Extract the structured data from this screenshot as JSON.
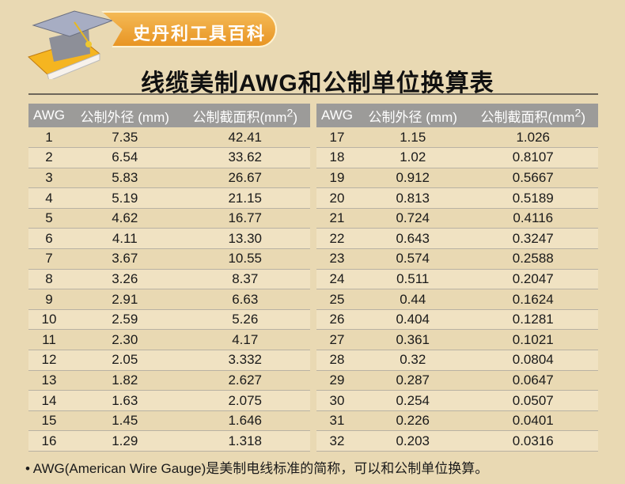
{
  "brand": {
    "name": "史丹利工具百科",
    "logo_icon": "graduation-cap-on-book-icon"
  },
  "title": "线缆美制AWG和公制单位换算表",
  "headers": {
    "awg": "AWG",
    "diameter": "公制外径 (mm)",
    "area": "公制截面积(mm",
    "sup": "2",
    ")": ")"
  },
  "left_rows": [
    [
      "1",
      "7.35",
      "42.41"
    ],
    [
      "2",
      "6.54",
      "33.62"
    ],
    [
      "3",
      "5.83",
      "26.67"
    ],
    [
      "4",
      "5.19",
      "21.15"
    ],
    [
      "5",
      "4.62",
      "16.77"
    ],
    [
      "6",
      "4.11",
      "13.30"
    ],
    [
      "7",
      "3.67",
      "10.55"
    ],
    [
      "8",
      "3.26",
      "8.37"
    ],
    [
      "9",
      "2.91",
      "6.63"
    ],
    [
      "10",
      "2.59",
      "5.26"
    ],
    [
      "11",
      "2.30",
      "4.17"
    ],
    [
      "12",
      "2.05",
      "3.332"
    ],
    [
      "13",
      "1.82",
      "2.627"
    ],
    [
      "14",
      "1.63",
      "2.075"
    ],
    [
      "15",
      "1.45",
      "1.646"
    ],
    [
      "16",
      "1.29",
      "1.318"
    ]
  ],
  "right_rows": [
    [
      "17",
      "1.15",
      "1.026"
    ],
    [
      "18",
      "1.02",
      "0.8107"
    ],
    [
      "19",
      "0.912",
      "0.5667"
    ],
    [
      "20",
      "0.813",
      "0.5189"
    ],
    [
      "21",
      "0.724",
      "0.4116"
    ],
    [
      "22",
      "0.643",
      "0.3247"
    ],
    [
      "23",
      "0.574",
      "0.2588"
    ],
    [
      "24",
      "0.511",
      "0.2047"
    ],
    [
      "25",
      "0.44",
      "0.1624"
    ],
    [
      "26",
      "0.404",
      "0.1281"
    ],
    [
      "27",
      "0.361",
      "0.1021"
    ],
    [
      "28",
      "0.32",
      "0.0804"
    ],
    [
      "29",
      "0.287",
      "0.0647"
    ],
    [
      "30",
      "0.254",
      "0.0507"
    ],
    [
      "31",
      "0.226",
      "0.0401"
    ],
    [
      "32",
      "0.203",
      "0.0316"
    ]
  ],
  "footer": "• AWG(American Wire Gauge)是美制电线标准的简称，可以和公制单位换算。"
}
